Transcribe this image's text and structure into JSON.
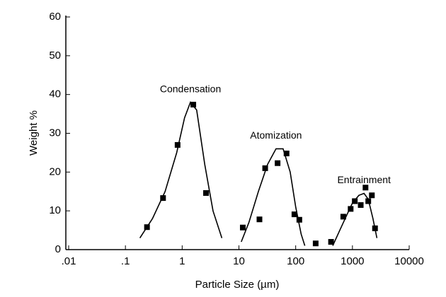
{
  "chart_data": {
    "type": "scatter",
    "x_label": "Particle Size (µm)",
    "y_label": "Weight %",
    "xscale": "log",
    "color": "#000000",
    "xlim": [
      0.01,
      10000
    ],
    "ylim": [
      0,
      60
    ],
    "xticks": [
      {
        "value": 0.01,
        "label": ".01"
      },
      {
        "value": 0.1,
        "label": ".1"
      },
      1,
      10,
      100,
      1000,
      10000
    ],
    "yticks": [
      0,
      10,
      20,
      30,
      40,
      50,
      60
    ],
    "series": [
      {
        "name": "Condensation",
        "x": [
          0.24,
          0.46,
          0.83,
          1.57,
          2.63
        ],
        "values": [
          5.8,
          13.3,
          27,
          37.4,
          14.6
        ],
        "fit_x": [
          0.18,
          0.3,
          0.5,
          0.8,
          1.1,
          1.4,
          1.8,
          2.5,
          3.5,
          5
        ],
        "fit_values": [
          3,
          8,
          15,
          25,
          34,
          38,
          36,
          22,
          10,
          3
        ]
      },
      {
        "name": "Atomization",
        "x": [
          11.7,
          23,
          29,
          48,
          69,
          95,
          116,
          225
        ],
        "values": [
          5.7,
          7.8,
          21,
          22.3,
          24.8,
          9.1,
          7.7,
          1.6
        ],
        "fit_x": [
          11,
          15,
          22,
          32,
          45,
          60,
          80,
          100,
          125,
          145
        ],
        "fit_values": [
          2,
          7,
          15,
          22,
          26,
          26,
          20,
          11,
          4,
          1
        ]
      },
      {
        "name": "Entrainment",
        "x": [
          420,
          690,
          930,
          1100,
          1400,
          1700,
          1900,
          2200,
          2500
        ],
        "values": [
          2,
          8.5,
          10.5,
          12.5,
          11.5,
          16,
          12.5,
          14,
          5.5
        ],
        "fit_x": [
          450,
          600,
          800,
          1000,
          1300,
          1600,
          1900,
          2300,
          2700
        ],
        "fit_values": [
          1,
          5,
          9,
          12,
          14,
          14.5,
          13,
          8,
          3
        ]
      }
    ]
  }
}
